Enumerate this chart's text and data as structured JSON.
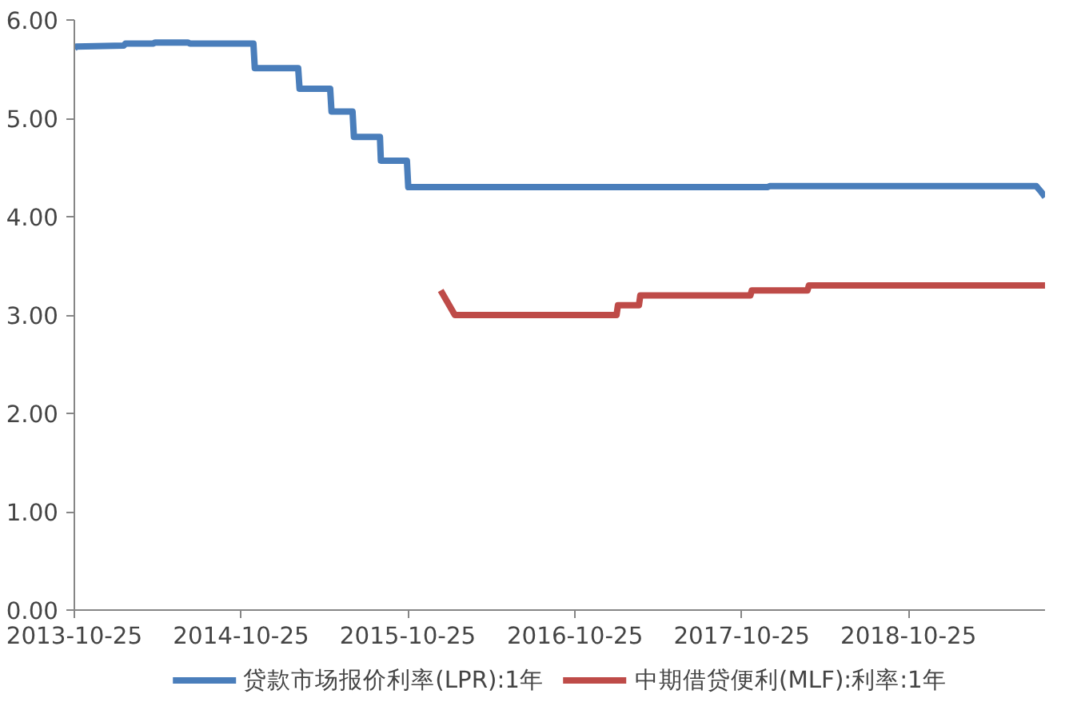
{
  "chart_data": {
    "type": "line",
    "xlim": [
      "2013-10-25",
      "2019-08-20"
    ],
    "xticks": [
      "2013-10-25",
      "2014-10-25",
      "2015-10-25",
      "2016-10-25",
      "2017-10-25",
      "2018-10-25"
    ],
    "ylim": [
      0,
      6
    ],
    "yticks": [
      {
        "value": 0,
        "label": "0.00"
      },
      {
        "value": 1,
        "label": "1.00"
      },
      {
        "value": 2,
        "label": "2.00"
      },
      {
        "value": 3,
        "label": "3.00"
      },
      {
        "value": 4,
        "label": "4.00"
      },
      {
        "value": 5,
        "label": "5.00"
      },
      {
        "value": 6,
        "label": "6.00"
      }
    ],
    "grid": false,
    "legend": "bottom",
    "marker": "none",
    "line_style": "solid",
    "series": [
      {
        "name": "贷款市场报价利率(LPR):1年",
        "color": "#4a7ebb",
        "x": [
          "2013-10-25",
          "2013-10-29",
          "2014-02-10",
          "2014-02-14",
          "2014-04-15",
          "2014-04-20",
          "2014-07-01",
          "2014-07-05",
          "2014-11-21",
          "2014-11-24",
          "2015-02-27",
          "2015-03-02",
          "2015-05-08",
          "2015-05-11",
          "2015-06-26",
          "2015-06-29",
          "2015-08-25",
          "2015-08-27",
          "2015-10-23",
          "2015-10-26",
          "2017-12-20",
          "2017-12-25",
          "2019-08-01",
          "2019-08-12",
          "2019-08-20"
        ],
        "values": [
          5.71,
          5.73,
          5.74,
          5.76,
          5.76,
          5.77,
          5.77,
          5.76,
          5.76,
          5.51,
          5.51,
          5.3,
          5.3,
          5.07,
          5.07,
          4.81,
          4.81,
          4.57,
          4.57,
          4.3,
          4.3,
          4.31,
          4.31,
          4.25,
          4.2
        ]
      },
      {
        "name": "中期借贷便利(MLF):利率:1年",
        "color": "#be4b48",
        "x": [
          "2016-01-05",
          "2016-02-05",
          "2017-01-24",
          "2017-01-27",
          "2017-03-14",
          "2017-03-17",
          "2017-11-13",
          "2017-11-16",
          "2018-03-18",
          "2018-03-21",
          "2019-08-20"
        ],
        "values": [
          3.25,
          3.0,
          3.0,
          3.1,
          3.1,
          3.2,
          3.2,
          3.25,
          3.25,
          3.3,
          3.3
        ]
      }
    ]
  }
}
